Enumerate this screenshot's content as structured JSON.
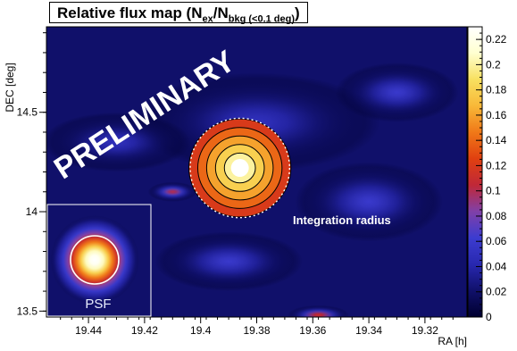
{
  "chart_data": {
    "type": "heatmap",
    "title": "Relative flux map (N",
    "title_sub1": "ex",
    "title_mid": "/N",
    "title_sub2": "bkg (<0.1 deg)",
    "title_end": ")",
    "xlabel": "RA [h]",
    "ylabel": "DEC [deg]",
    "x_ticks": [
      "19.44",
      "19.42",
      "19.4",
      "19.38",
      "19.36",
      "19.34",
      "19.32"
    ],
    "x_tick_values": [
      19.44,
      19.42,
      19.4,
      19.38,
      19.36,
      19.34,
      19.32
    ],
    "xlim": [
      19.455,
      19.305
    ],
    "y_ticks": [
      "13.5",
      "14",
      "14.5"
    ],
    "y_tick_values": [
      13.5,
      14.0,
      14.5
    ],
    "ylim": [
      13.47,
      14.93
    ],
    "colorbar_ticks": [
      "0",
      "0.02",
      "0.04",
      "0.06",
      "0.08",
      "0.1",
      "0.12",
      "0.14",
      "0.16",
      "0.18",
      "0.2",
      "0.22"
    ],
    "colorbar_values": [
      0,
      0.02,
      0.04,
      0.06,
      0.08,
      0.1,
      0.12,
      0.14,
      0.16,
      0.18,
      0.2,
      0.22
    ],
    "zlim": [
      0,
      0.23
    ],
    "peak": {
      "ra": 19.386,
      "dec": 14.22,
      "value": 0.23
    },
    "hotspots": [
      {
        "ra": 19.386,
        "dec": 14.22,
        "value": 0.23,
        "sigma_ra": 0.0085,
        "sigma_dec": 0.16
      },
      {
        "ra": 19.41,
        "dec": 14.1,
        "value": 0.1,
        "sigma_ra": 0.004,
        "sigma_dec": 0.05
      },
      {
        "ra": 19.358,
        "dec": 13.48,
        "value": 0.11,
        "sigma_ra": 0.005,
        "sigma_dec": 0.05
      },
      {
        "ra": 19.38,
        "dec": 14.45,
        "value": 0.05,
        "sigma_ra": 0.02,
        "sigma_dec": 0.25
      },
      {
        "ra": 19.34,
        "dec": 14.05,
        "value": 0.06,
        "sigma_ra": 0.012,
        "sigma_dec": 0.2
      },
      {
        "ra": 19.33,
        "dec": 14.6,
        "value": 0.06,
        "sigma_ra": 0.01,
        "sigma_dec": 0.15
      },
      {
        "ra": 19.43,
        "dec": 14.35,
        "value": 0.05,
        "sigma_ra": 0.012,
        "sigma_dec": 0.15
      },
      {
        "ra": 19.39,
        "dec": 13.75,
        "value": 0.06,
        "sigma_ra": 0.012,
        "sigma_dec": 0.15
      }
    ],
    "contour_levels": [
      0.12,
      0.14,
      0.16,
      0.18,
      0.2,
      0.22
    ],
    "integration_radius_deg": 0.25,
    "annotations": {
      "preliminary": "PRELIMINARY",
      "integration": "Integration radius",
      "psf": "PSF"
    },
    "colorscale": [
      "#000030",
      "#10106a",
      "#2828b0",
      "#3c3cd0",
      "#8040a8",
      "#c02838",
      "#e04010",
      "#f07818",
      "#f8b838",
      "#f8e060",
      "#ffffd0",
      "#ffffff"
    ]
  }
}
